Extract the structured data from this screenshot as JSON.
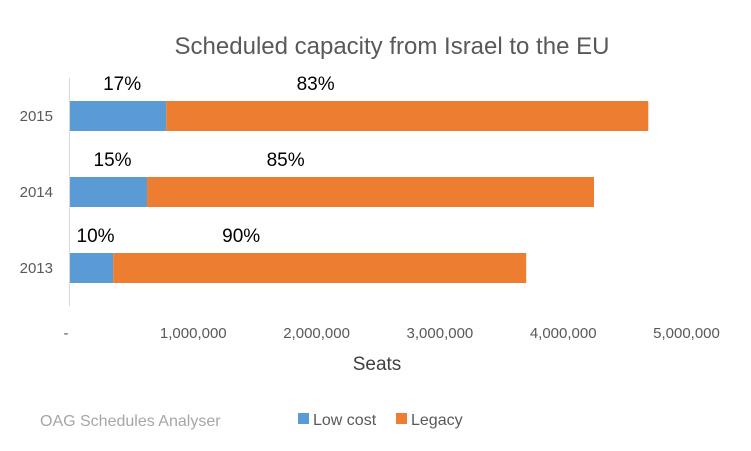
{
  "chart_data": {
    "type": "bar",
    "orientation": "horizontal",
    "stacked": true,
    "title": "Scheduled capacity from Israel to the EU",
    "xlabel": "Seats",
    "ylabel": "",
    "xlim": [
      0,
      5000000
    ],
    "x_ticks": [
      0,
      1000000,
      2000000,
      3000000,
      4000000,
      5000000
    ],
    "x_tick_labels": [
      "-",
      "1,000,000",
      "2,000,000",
      "3,000,000",
      "4,000,000",
      "5,000,000"
    ],
    "grid": false,
    "categories": [
      "2015",
      "2014",
      "2013"
    ],
    "series": [
      {
        "name": "Low cost",
        "color": "#5b9bd5",
        "values": [
          780000,
          625000,
          350000
        ],
        "labels": [
          "17%",
          "15%",
          "10%"
        ]
      },
      {
        "name": "Legacy",
        "color": "#ed7d31",
        "values": [
          3910000,
          3625000,
          3350000
        ],
        "labels": [
          "83%",
          "85%",
          "90%"
        ]
      }
    ],
    "legend": {
      "position": "bottom",
      "entries": [
        "Low cost",
        "Legacy"
      ]
    },
    "source_note": "OAG Schedules Analyser"
  }
}
